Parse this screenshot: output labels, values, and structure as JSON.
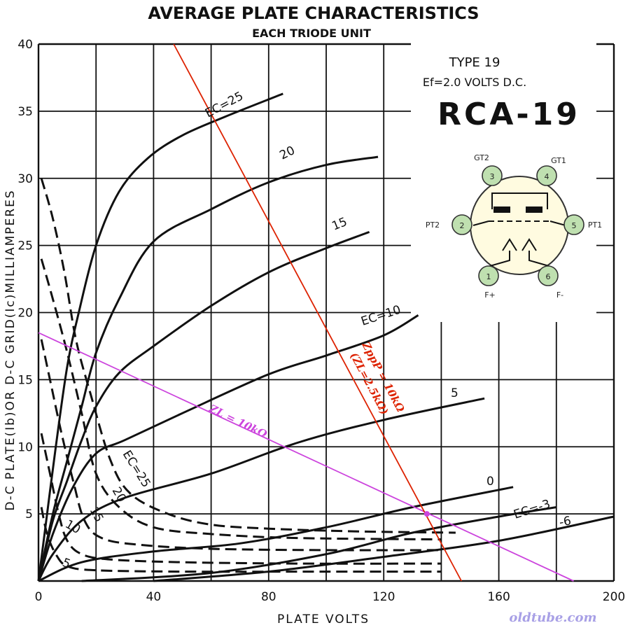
{
  "chart_data": {
    "type": "line",
    "title": "AVERAGE PLATE CHARACTERISTICS",
    "subtitle": "EACH TRIODE UNIT",
    "xlabel": "PLATE VOLTS",
    "ylabel": "D-C PLATE(Ib)OR D-C GRID(Ic)MILLIAMPERES",
    "xlim": [
      0,
      200
    ],
    "ylim": [
      0,
      40
    ],
    "x_ticks": [
      "0",
      "40",
      "80",
      "120",
      "160",
      "200"
    ],
    "y_ticks": [
      "5",
      "10",
      "15",
      "20",
      "25",
      "30",
      "35",
      "40"
    ],
    "grid": true,
    "info": {
      "type_line": "TYPE 19",
      "ef_line": "Ef=2.0 VOLTS D.C.",
      "brand": "RCA-19"
    },
    "plate_series": [
      {
        "label": "EC=25",
        "points": [
          [
            0,
            0
          ],
          [
            3,
            5
          ],
          [
            6,
            10
          ],
          [
            10,
            16
          ],
          [
            14,
            20
          ],
          [
            20,
            25
          ],
          [
            28,
            29
          ],
          [
            38,
            31.5
          ],
          [
            50,
            33.2
          ],
          [
            65,
            34.6
          ],
          [
            85,
            36.3
          ]
        ]
      },
      {
        "label": "20",
        "points": [
          [
            0,
            0
          ],
          [
            5,
            5
          ],
          [
            10,
            9
          ],
          [
            15,
            13
          ],
          [
            20,
            17
          ],
          [
            28,
            21
          ],
          [
            40,
            25.3
          ],
          [
            60,
            27.7
          ],
          [
            80,
            29.7
          ],
          [
            100,
            31
          ],
          [
            118,
            31.6
          ]
        ]
      },
      {
        "label": "15",
        "points": [
          [
            0,
            0
          ],
          [
            5,
            4.5
          ],
          [
            10,
            7.5
          ],
          [
            15,
            10.5
          ],
          [
            20,
            13
          ],
          [
            28,
            15.5
          ],
          [
            40,
            17.5
          ],
          [
            60,
            20.5
          ],
          [
            80,
            23
          ],
          [
            100,
            24.8
          ],
          [
            115,
            26
          ]
        ]
      },
      {
        "label": "EC=10",
        "points": [
          [
            0,
            0
          ],
          [
            5,
            3.5
          ],
          [
            12,
            7
          ],
          [
            20,
            9.5
          ],
          [
            30,
            10.5
          ],
          [
            50,
            12.5
          ],
          [
            80,
            15.4
          ],
          [
            100,
            16.8
          ],
          [
            120,
            18.3
          ],
          [
            132,
            19.8
          ]
        ]
      },
      {
        "label": "5",
        "points": [
          [
            0,
            0
          ],
          [
            5,
            2
          ],
          [
            15,
            4.5
          ],
          [
            30,
            6.2
          ],
          [
            60,
            8
          ],
          [
            90,
            10.3
          ],
          [
            120,
            12
          ],
          [
            155,
            13.6
          ]
        ]
      },
      {
        "label": "0",
        "points": [
          [
            0,
            0
          ],
          [
            15,
            1.4
          ],
          [
            40,
            2.2
          ],
          [
            70,
            2.8
          ],
          [
            100,
            4
          ],
          [
            130,
            5.5
          ],
          [
            165,
            7
          ]
        ]
      },
      {
        "label": "EC=-3",
        "points": [
          [
            15,
            0
          ],
          [
            60,
            0.6
          ],
          [
            100,
            2
          ],
          [
            130,
            3.6
          ],
          [
            160,
            4.8
          ],
          [
            180,
            5.5
          ]
        ]
      },
      {
        "label": "-6",
        "points": [
          [
            40,
            0
          ],
          [
            80,
            0.7
          ],
          [
            120,
            1.8
          ],
          [
            160,
            3
          ],
          [
            200,
            4.8
          ]
        ]
      }
    ],
    "grid_series": [
      {
        "label": "EC=25",
        "points": [
          [
            1,
            30
          ],
          [
            5,
            27
          ],
          [
            9,
            23
          ],
          [
            13,
            18
          ],
          [
            18,
            14
          ],
          [
            25,
            9
          ],
          [
            32,
            6.5
          ],
          [
            45,
            5
          ],
          [
            60,
            4.2
          ],
          [
            80,
            3.9
          ],
          [
            110,
            3.7
          ],
          [
            145,
            3.6
          ]
        ]
      },
      {
        "label": "20",
        "points": [
          [
            1,
            24
          ],
          [
            5,
            21
          ],
          [
            10,
            17
          ],
          [
            15,
            12.5
          ],
          [
            20,
            8
          ],
          [
            28,
            5.5
          ],
          [
            40,
            4
          ],
          [
            60,
            3.5
          ],
          [
            90,
            3.2
          ],
          [
            140,
            3.1
          ]
        ]
      },
      {
        "label": "15",
        "points": [
          [
            1,
            18
          ],
          [
            4,
            15
          ],
          [
            8,
            11
          ],
          [
            12,
            7.5
          ],
          [
            16,
            4.5
          ],
          [
            22,
            3.2
          ],
          [
            35,
            2.7
          ],
          [
            60,
            2.4
          ],
          [
            100,
            2.3
          ],
          [
            140,
            2.3
          ]
        ]
      },
      {
        "label": "10",
        "points": [
          [
            1,
            11
          ],
          [
            4,
            8
          ],
          [
            7,
            5
          ],
          [
            10,
            3
          ],
          [
            15,
            2
          ],
          [
            25,
            1.6
          ],
          [
            50,
            1.4
          ],
          [
            90,
            1.3
          ],
          [
            140,
            1.3
          ]
        ]
      },
      {
        "label": "5",
        "points": [
          [
            1,
            5.5
          ],
          [
            3,
            3.5
          ],
          [
            6,
            2
          ],
          [
            10,
            1.1
          ],
          [
            20,
            0.8
          ],
          [
            50,
            0.7
          ],
          [
            100,
            0.7
          ],
          [
            140,
            0.7
          ]
        ]
      }
    ],
    "load_lines": [
      {
        "label": "ZL = 10kΩ",
        "from": [
          0,
          18.5
        ],
        "to": [
          186,
          0
        ],
        "color": "#cc44dd"
      },
      {
        "label": "ZppP = 10kΩ (ZL=2.5kΩ)",
        "from": [
          47,
          40
        ],
        "to": [
          147,
          0
        ],
        "color": "#dd2200"
      }
    ],
    "operating_point": [
      135,
      5
    ],
    "tube_pins": [
      {
        "num": "1",
        "label": "F+"
      },
      {
        "num": "2",
        "label": "PT2"
      },
      {
        "num": "3",
        "label": "GT2"
      },
      {
        "num": "4",
        "label": "GT1"
      },
      {
        "num": "5",
        "label": "PT1"
      },
      {
        "num": "6",
        "label": "F-"
      }
    ],
    "credit": "oldtube.com"
  }
}
